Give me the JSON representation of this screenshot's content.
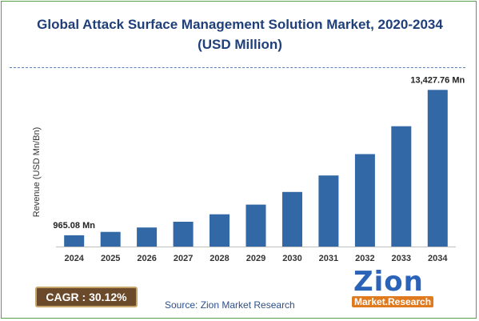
{
  "chart_data": {
    "type": "bar",
    "title": "Global Attack Surface Management Solution Market, 2020-2034 (USD Million)",
    "ylabel": "Revenue (USD Mn/Bn)",
    "xlabel": "",
    "categories": [
      "2024",
      "2025",
      "2026",
      "2027",
      "2028",
      "2029",
      "2030",
      "2031",
      "2032",
      "2033",
      "2034"
    ],
    "values": [
      965.08,
      1256,
      1634,
      2126,
      2766,
      3598,
      4682,
      6091,
      7926,
      10313,
      13427.76
    ],
    "data_labels": {
      "0": "965.08 Mn",
      "10": "13,427.76 Mn"
    },
    "ylim": [
      0,
      14000
    ],
    "grid": false,
    "legend": "none",
    "bar_color": "#3368a6"
  },
  "cagr": {
    "text": "CAGR : 30.12%"
  },
  "source": {
    "text": "Source: Zion Market Research"
  },
  "logo": {
    "main": "Zion",
    "sub": "Market.Research"
  },
  "colors": {
    "title": "#1f3f7a",
    "cagr_bg": "#6b4a2b",
    "logo_blue": "#2a63b8",
    "logo_orange": "#e07a1f"
  }
}
